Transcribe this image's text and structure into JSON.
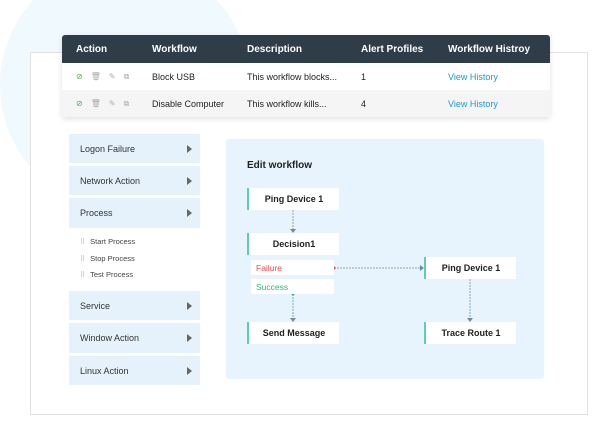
{
  "table": {
    "headers": [
      "Action",
      "Workflow",
      "Description",
      "Alert Profiles",
      "Workflow Histroy"
    ],
    "rows": [
      {
        "workflow": "Block USB",
        "description": "This workflow blocks...",
        "alert_profiles": "1",
        "history": "View History"
      },
      {
        "workflow": "Disable Computer",
        "description": "This workflow kills...",
        "alert_profiles": "4",
        "history": "View History"
      }
    ]
  },
  "sidebar": {
    "items": [
      "Logon Failure",
      "Network Action",
      "Process",
      "Service",
      "Window Action",
      "Linux Action"
    ],
    "process_subitems": [
      "Start Process",
      "Stop Process",
      "Test Process"
    ]
  },
  "editor": {
    "title": "Edit workflow",
    "nodes": {
      "ping1": "Ping Device 1",
      "decision": "Decision1",
      "failure": "Failure",
      "success": "Success",
      "send": "Send Message",
      "ping2": "Ping Device 1",
      "trace": "Trace Route 1"
    }
  },
  "colors": {
    "header": "#2e3d47",
    "link": "#1a9ad6",
    "failure": "#f0484f",
    "success": "#2dbb6c",
    "node_accent": "#5ccfb0"
  }
}
